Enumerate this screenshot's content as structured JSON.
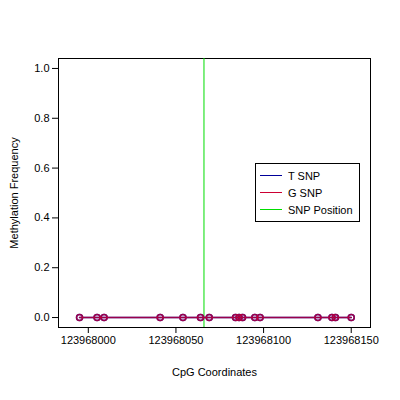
{
  "chart_data": {
    "type": "line",
    "x_label": "CpG Coordinates",
    "y_label": "Methylation Frequency",
    "x": [
      123967995,
      123968005,
      123968009,
      123968041,
      123968054,
      123968064,
      123968069,
      123968084,
      123968086,
      123968088,
      123968095,
      123968098,
      123968131,
      123968139,
      123968141,
      123968150
    ],
    "series": [
      {
        "name": "T SNP",
        "color": "#000099",
        "marker": "circle",
        "values": [
          0,
          0,
          0,
          0,
          0,
          0,
          0,
          0,
          0,
          0,
          0,
          0,
          0,
          0,
          0,
          0
        ]
      },
      {
        "name": "G SNP",
        "color": "#cc0033",
        "marker": "circle",
        "values": [
          0,
          0,
          0,
          0,
          0,
          0,
          0,
          0,
          0,
          0,
          0,
          0,
          0,
          0,
          0,
          0
        ]
      }
    ],
    "snp_position": {
      "name": "SNP Position",
      "color": "#00dd00",
      "x": 123968066
    },
    "xlim": [
      123967983,
      123968161
    ],
    "xticks": [
      123968000,
      123968050,
      123968100,
      123968150
    ],
    "ylim": [
      -0.04,
      1.04
    ],
    "yticks": [
      {
        "value": 0,
        "label": "0.0"
      },
      {
        "value": 0.2,
        "label": "0.2"
      },
      {
        "value": 0.4,
        "label": "0.4"
      },
      {
        "value": 0.6,
        "label": "0.6"
      },
      {
        "value": 0.8,
        "label": "0.8"
      },
      {
        "value": 1,
        "label": "1.0"
      }
    ],
    "legend": "right",
    "grid": false
  }
}
